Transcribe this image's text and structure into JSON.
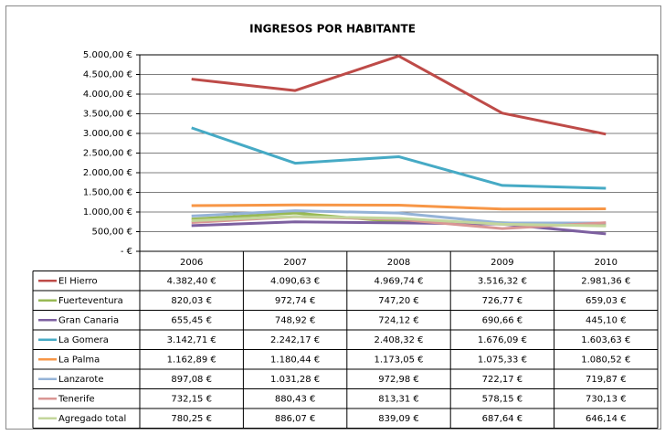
{
  "chart_data": {
    "type": "line",
    "title": "INGRESOS POR HABITANTE",
    "categories": [
      "2006",
      "2007",
      "2008",
      "2009",
      "2010"
    ],
    "series": [
      {
        "name": "El Hierro",
        "color": "#be4b48",
        "values": [
          4382.4,
          4090.63,
          4969.74,
          3516.32,
          2981.36
        ],
        "value_labels": [
          "4.382,40 €",
          "4.090,63 €",
          "4.969,74 €",
          "3.516,32 €",
          "2.981,36 €"
        ]
      },
      {
        "name": "Fuerteventura",
        "color": "#98b954",
        "values": [
          820.03,
          972.74,
          747.2,
          726.77,
          659.03
        ],
        "value_labels": [
          "820,03 €",
          "972,74 €",
          "747,20 €",
          "726,77 €",
          "659,03 €"
        ]
      },
      {
        "name": "Gran Canaria",
        "color": "#7d60a0",
        "values": [
          655.45,
          748.92,
          724.12,
          690.66,
          445.1
        ],
        "value_labels": [
          "655,45 €",
          "748,92 €",
          "724,12 €",
          "690,66 €",
          "445,10 €"
        ]
      },
      {
        "name": "La Gomera",
        "color": "#46aac5",
        "values": [
          3142.71,
          2242.17,
          2408.32,
          1676.09,
          1603.63
        ],
        "value_labels": [
          "3.142,71 €",
          "2.242,17 €",
          "2.408,32 €",
          "1.676,09 €",
          "1.603,63 €"
        ]
      },
      {
        "name": "La Palma",
        "color": "#f79646",
        "values": [
          1162.89,
          1180.44,
          1173.05,
          1075.33,
          1080.52
        ],
        "value_labels": [
          "1.162,89 €",
          "1.180,44 €",
          "1.173,05 €",
          "1.075,33 €",
          "1.080,52 €"
        ]
      },
      {
        "name": "Lanzarote",
        "color": "#95b3d7",
        "values": [
          897.08,
          1031.28,
          972.98,
          722.17,
          719.87
        ],
        "value_labels": [
          "897,08 €",
          "1.031,28 €",
          "972,98 €",
          "722,17 €",
          "719,87 €"
        ]
      },
      {
        "name": "Tenerife",
        "color": "#d99694",
        "values": [
          732.15,
          880.43,
          813.31,
          578.15,
          730.13
        ],
        "value_labels": [
          "732,15 €",
          "880,43 €",
          "813,31 €",
          "578,15 €",
          "730,13 €"
        ]
      },
      {
        "name": "Agregado total",
        "color": "#c3d69b",
        "values": [
          780.25,
          886.07,
          839.09,
          687.64,
          646.14
        ],
        "value_labels": [
          "780,25 €",
          "886,07 €",
          "839,09 €",
          "687,64 €",
          "646,14 €"
        ]
      }
    ],
    "ylim": [
      0,
      5000
    ],
    "yticks": [
      {
        "value": 0,
        "label": "-   €"
      },
      {
        "value": 500,
        "label": "500,00 €"
      },
      {
        "value": 1000,
        "label": "1.000,00 €"
      },
      {
        "value": 1500,
        "label": "1.500,00 €"
      },
      {
        "value": 2000,
        "label": "2.000,00 €"
      },
      {
        "value": 2500,
        "label": "2.500,00 €"
      },
      {
        "value": 3000,
        "label": "3.000,00 €"
      },
      {
        "value": 3500,
        "label": "3.500,00 €"
      },
      {
        "value": 4000,
        "label": "4.000,00 €"
      },
      {
        "value": 4500,
        "label": "4.500,00 €"
      },
      {
        "value": 5000,
        "label": "5.000,00 €"
      }
    ],
    "grid": true
  }
}
